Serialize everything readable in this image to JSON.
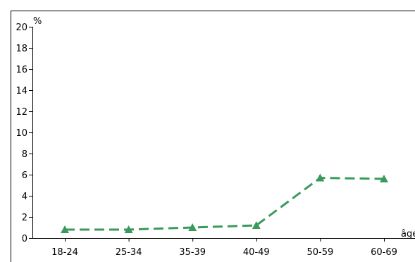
{
  "chart_data": {
    "type": "line",
    "categories": [
      "18-24",
      "25-34",
      "35-39",
      "40-49",
      "50-59",
      "60-69"
    ],
    "series": [
      {
        "values": [
          0.8,
          0.8,
          1.0,
          1.2,
          5.7,
          5.6
        ],
        "color": "#3a9a5c",
        "marker": "triangle",
        "line_style": "dashed"
      }
    ],
    "title": "",
    "xlabel": "âge",
    "ylabel": "%",
    "ylim": [
      0,
      20
    ],
    "yticks": [
      0,
      2,
      4,
      6,
      8,
      10,
      12,
      14,
      16,
      18,
      20
    ],
    "grid": false,
    "legend": "none"
  }
}
